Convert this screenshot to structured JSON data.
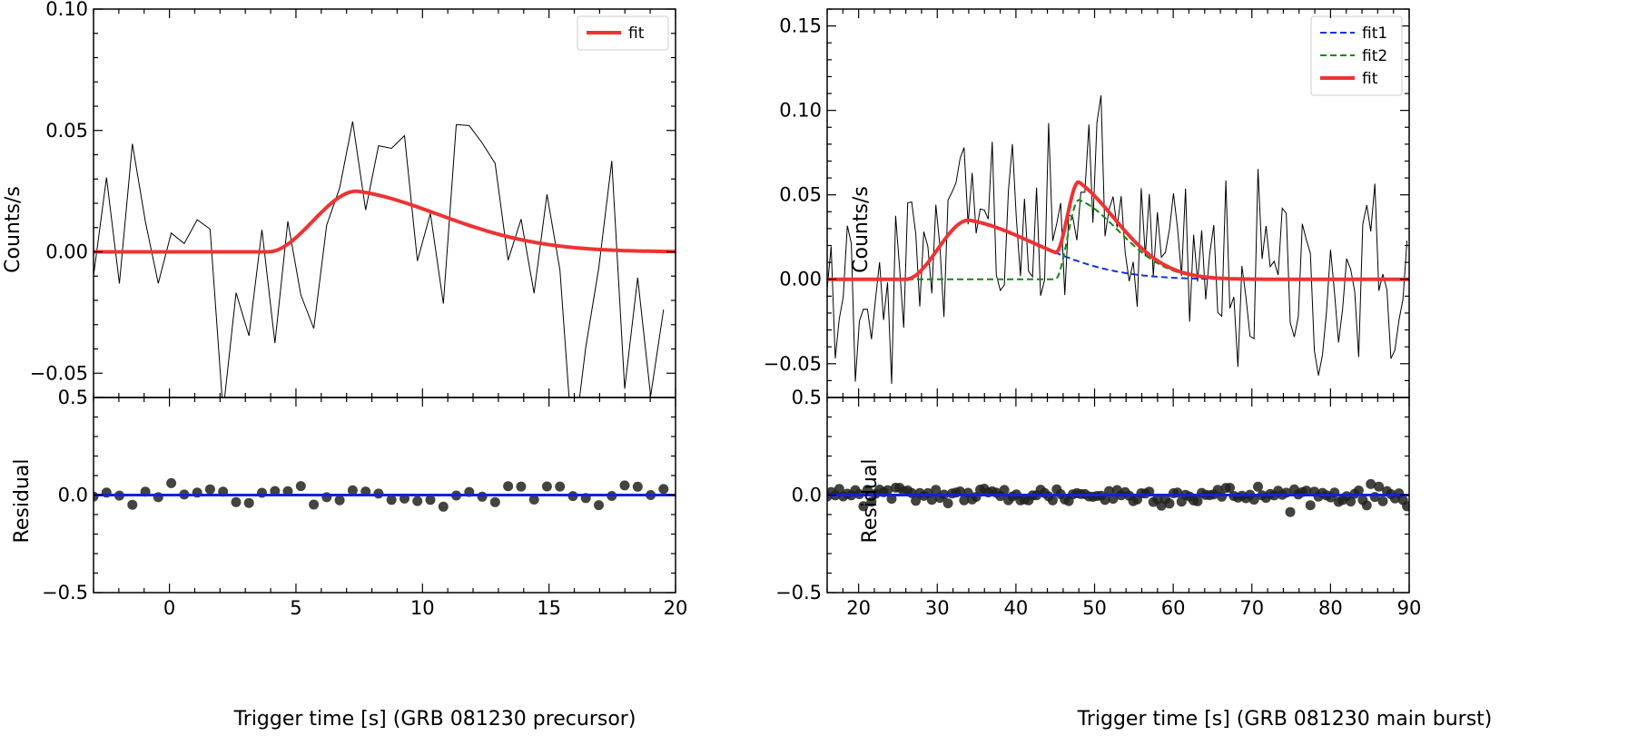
{
  "chart_data": [
    {
      "type": "line",
      "panel": "precursor",
      "xlabel": "Trigger time [s] (GRB 081230 precursor)",
      "ylabel": "Counts/s",
      "residual_ylabel": "Residual",
      "xlim": [
        -3,
        20
      ],
      "ylim": [
        -0.06,
        0.1
      ],
      "residual_ylim": [
        -0.5,
        0.5
      ],
      "xticks": [
        0,
        5,
        10,
        15,
        20
      ],
      "yticks": [
        -0.05,
        0.0,
        0.05,
        0.1
      ],
      "ytick_labels": [
        "−0.05",
        "0.00",
        "0.05",
        "0.10"
      ],
      "residual_yticks": [
        -0.5,
        0.0,
        0.5
      ],
      "residual_ytick_labels": [
        "−0.5",
        "0.0",
        "0.5"
      ],
      "xtick_labels": [
        "0",
        "5",
        "10",
        "15",
        "20"
      ],
      "legend": {
        "position": "top-right",
        "entries": [
          {
            "label": "fit",
            "color": "#ee3333",
            "style": "solid"
          }
        ]
      },
      "series": [
        {
          "name": "data",
          "style": "noisy-line",
          "color": "#000000",
          "bin": 0.064,
          "noise_sigma": 0.032
        },
        {
          "name": "fit",
          "color": "#ee3333",
          "style": "solid",
          "pulse": {
            "t0": 3.9,
            "peak_time": 7.4,
            "amplitude": 0.025,
            "rise": 2.2,
            "decay": 5.5
          }
        }
      ],
      "residuals": {
        "color": "#222222",
        "line_color": "#1122dd",
        "scatter_sigma": 0.03
      }
    },
    {
      "type": "line",
      "panel": "main_burst",
      "xlabel": "Trigger time [s] (GRB 081230 main burst)",
      "ylabel": "Counts/s",
      "residual_ylabel": "Residual",
      "xlim": [
        16,
        90
      ],
      "ylim": [
        -0.07,
        0.16
      ],
      "residual_ylim": [
        -0.5,
        0.5
      ],
      "xticks": [
        20,
        30,
        40,
        50,
        60,
        70,
        80,
        90
      ],
      "xtick_labels": [
        "20",
        "30",
        "40",
        "50",
        "60",
        "70",
        "80",
        "90"
      ],
      "yticks": [
        -0.05,
        0.0,
        0.05,
        0.1,
        0.15
      ],
      "ytick_labels": [
        "−0.05",
        "0.00",
        "0.05",
        "0.10",
        "0.15"
      ],
      "residual_yticks": [
        -0.5,
        0.0,
        0.5
      ],
      "residual_ytick_labels": [
        "−0.5",
        "0.0",
        "0.5"
      ],
      "legend": {
        "position": "top-right",
        "entries": [
          {
            "label": "fit1",
            "color": "#1133dd",
            "style": "dashed"
          },
          {
            "label": "fit2",
            "color": "#118811",
            "style": "dashed"
          },
          {
            "label": "fit",
            "color": "#ee3333",
            "style": "solid"
          }
        ]
      },
      "series": [
        {
          "name": "data",
          "style": "noisy-line",
          "color": "#000000",
          "bin": 0.064,
          "noise_sigma": 0.03
        },
        {
          "name": "fit1",
          "color": "#1133dd",
          "style": "dashed",
          "pulse": {
            "t0": 26.0,
            "peak_time": 34.0,
            "amplitude": 0.035,
            "rise": 5.0,
            "decay": 14.0
          }
        },
        {
          "name": "fit2",
          "color": "#118811",
          "style": "dashed",
          "pulse": {
            "t0": 45.0,
            "peak_time": 48.0,
            "amplitude": 0.047,
            "rise": 1.6,
            "decay": 8.5
          }
        },
        {
          "name": "fit",
          "color": "#ee3333",
          "style": "solid",
          "sum_of": [
            "fit1",
            "fit2"
          ]
        }
      ],
      "residuals": {
        "color": "#222222",
        "line_color": "#1122dd",
        "scatter_sigma": 0.025
      }
    }
  ]
}
